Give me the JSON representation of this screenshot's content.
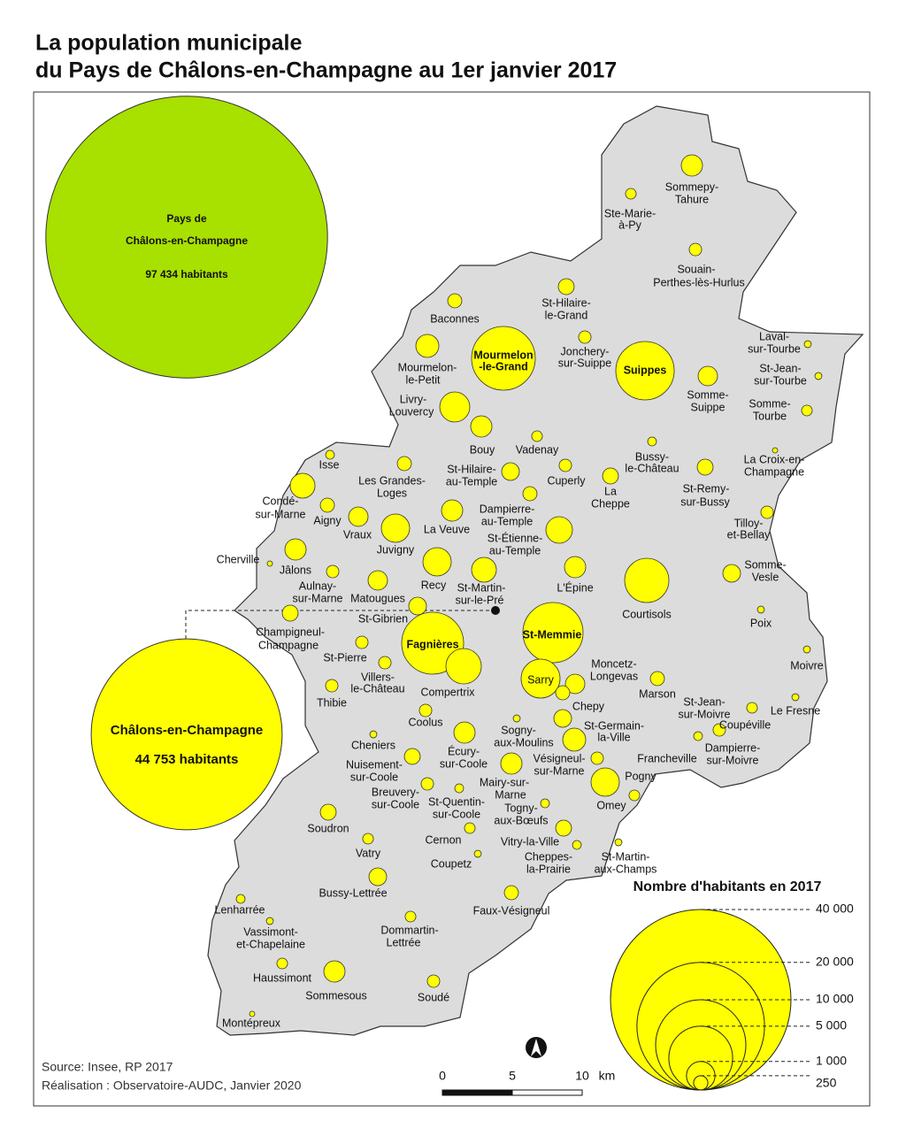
{
  "title": [
    "La population municipale",
    "du Pays de Châlons-en-Champagne au 1er janvier 2017"
  ],
  "pays": {
    "name": [
      "Pays de",
      "Châlons-en-Champagne"
    ],
    "population": 97434,
    "population_label": "97 434 habitants"
  },
  "chalons": {
    "name": "Châlons-en-Champagne",
    "population": 44753,
    "population_label": "44 753 habitants"
  },
  "communes": [
    {
      "name": [
        "Sommepy-",
        "Tahure"
      ],
      "population": 555
    },
    {
      "name": [
        "Ste-Marie-",
        "à-Py"
      ],
      "population": 140
    },
    {
      "name": [
        "Souain-",
        "Perthes-lès-Hurlus"
      ],
      "population": 190
    },
    {
      "name": [
        "St-Hilaire-",
        "le-Grand"
      ],
      "population": 310
    },
    {
      "name": [
        "Baconnes"
      ],
      "population": 245
    },
    {
      "name": [
        "Jonchery-",
        "sur-Suippe"
      ],
      "population": 190
    },
    {
      "name": [
        "Mourmelon-",
        "le-Petit"
      ],
      "population": 650
    },
    {
      "name": [
        "Mourmelon",
        "-le-Grand"
      ],
      "population": 4985
    },
    {
      "name": [
        "Suippes"
      ],
      "population": 4190
    },
    {
      "name": [
        "Laval-",
        "sur-Tourbe"
      ],
      "population": 60
    },
    {
      "name": [
        "St-Jean-",
        "sur-Tourbe"
      ],
      "population": 60
    },
    {
      "name": [
        "Somme-",
        "Suippe"
      ],
      "population": 465
    },
    {
      "name": [
        "Somme-",
        "Tourbe"
      ],
      "population": 140
    },
    {
      "name": [
        "Livry-",
        "Louvercy"
      ],
      "population": 1110
    },
    {
      "name": [
        "Bouy"
      ],
      "population": 555
    },
    {
      "name": [
        "Vadenay"
      ],
      "population": 140
    },
    {
      "name": [
        "Bussy-",
        "le-Château"
      ],
      "population": 95
    },
    {
      "name": [
        "La Croix-en-",
        "Champagne"
      ],
      "population": 35
    },
    {
      "name": [
        "Isse"
      ],
      "population": 95
    },
    {
      "name": [
        "Les Grandes-",
        "Loges"
      ],
      "population": 245
    },
    {
      "name": [
        "St-Hilaire-",
        "au-Temple"
      ],
      "population": 385
    },
    {
      "name": [
        "Cuperly"
      ],
      "population": 190
    },
    {
      "name": [
        "St-Remy-",
        "sur-Bussy"
      ],
      "population": 310
    },
    {
      "name": [
        "La",
        "Cheppe"
      ],
      "population": 310
    },
    {
      "name": [
        "Condé-",
        "sur-Marne"
      ],
      "population": 755
    },
    {
      "name": [
        "Dampierre-",
        "au-Temple"
      ],
      "population": 245
    },
    {
      "name": [
        "Aigny"
      ],
      "population": 245
    },
    {
      "name": [
        "Vraux"
      ],
      "population": 465
    },
    {
      "name": [
        "Juvigny"
      ],
      "population": 985
    },
    {
      "name": [
        "La Veuve"
      ],
      "population": 555
    },
    {
      "name": [
        "St-Étienne-",
        "au-Temple"
      ],
      "population": 865
    },
    {
      "name": [
        "Tilloy-",
        "et-Bellay"
      ],
      "population": 190
    },
    {
      "name": [
        "Cherville"
      ],
      "population": 35
    },
    {
      "name": [
        "Jâlons"
      ],
      "population": 555
    },
    {
      "name": [
        "Aulnay-",
        "sur-Marne"
      ],
      "population": 190
    },
    {
      "name": [
        "Recy"
      ],
      "population": 985
    },
    {
      "name": [
        "St-Martin-",
        "sur-le-Pré"
      ],
      "population": 755
    },
    {
      "name": [
        "L'Épine"
      ],
      "population": 555
    },
    {
      "name": [
        "Matougues"
      ],
      "population": 465
    },
    {
      "name": [
        "Courtisols"
      ],
      "population": 2400
    },
    {
      "name": [
        "Somme-",
        "Vesle"
      ],
      "population": 385
    },
    {
      "name": [
        "Poix"
      ],
      "population": 60
    },
    {
      "name": [
        "St-Gibrien"
      ],
      "population": 385
    },
    {
      "name": [
        "Champigneul-",
        "Champagne"
      ],
      "population": 310
    },
    {
      "name": [
        "Fagnières"
      ],
      "population": 4710
    },
    {
      "name": [
        "St-Memmie"
      ],
      "population": 4445
    },
    {
      "name": [
        "Compertrix"
      ],
      "population": 1540
    },
    {
      "name": [
        "Sarry"
      ],
      "population": 1860
    },
    {
      "name": [
        "St-Pierre"
      ],
      "population": 190
    },
    {
      "name": [
        "Villers-",
        "le-Château"
      ],
      "population": 190
    },
    {
      "name": [
        "Moncetz-",
        "Longevas"
      ],
      "population": 465
    },
    {
      "name": [
        "Marson"
      ],
      "population": 245
    },
    {
      "name": [
        "Moivre"
      ],
      "population": 60
    },
    {
      "name": [
        "Thibie"
      ],
      "population": 190
    },
    {
      "name": [
        "Chepy"
      ],
      "population": 245
    },
    {
      "name": [
        "Coolus"
      ],
      "population": 190
    },
    {
      "name": [
        "Le Fresne"
      ],
      "population": 60
    },
    {
      "name": [
        "St-Jean-",
        "sur-Moivre"
      ],
      "population": 140
    },
    {
      "name": [
        "Sogny-",
        "aux-Moulins"
      ],
      "population": 60
    },
    {
      "name": [
        "St-Germain-",
        "la-Ville"
      ],
      "population": 385
    },
    {
      "name": [
        "Coupéville"
      ],
      "population": 190
    },
    {
      "name": [
        "Écury-",
        "sur-Coole"
      ],
      "population": 555
    },
    {
      "name": [
        "Cheniers"
      ],
      "population": 60
    },
    {
      "name": [
        "Vésigneul-",
        "sur-Marne"
      ],
      "population": 650
    },
    {
      "name": [
        "Francheville"
      ],
      "population": 190
    },
    {
      "name": [
        "Dampierre-",
        "sur-Moivre"
      ],
      "population": 95
    },
    {
      "name": [
        "Nuisement-",
        "sur-Coole"
      ],
      "population": 310
    },
    {
      "name": [
        "Mairy-sur-",
        "Marne"
      ],
      "population": 555
    },
    {
      "name": [
        "Pogny"
      ],
      "population": 985
    },
    {
      "name": [
        "Breuvery-",
        "sur-Coole"
      ],
      "population": 190
    },
    {
      "name": [
        "St-Quentin-",
        "sur-Coole"
      ],
      "population": 95
    },
    {
      "name": [
        "Omey"
      ],
      "population": 140
    },
    {
      "name": [
        "Togny-",
        "aux-Bœufs"
      ],
      "population": 95
    },
    {
      "name": [
        "Soudron"
      ],
      "population": 310
    },
    {
      "name": [
        "Cernon"
      ],
      "population": 140
    },
    {
      "name": [
        "Vitry-la-Ville"
      ],
      "population": 310
    },
    {
      "name": [
        "Vatry"
      ],
      "population": 140
    },
    {
      "name": [
        "Coupetz"
      ],
      "population": 60
    },
    {
      "name": [
        "Cheppes-",
        "la-Prairie"
      ],
      "population": 95
    },
    {
      "name": [
        "St-Martin-",
        "aux-Champs"
      ],
      "population": 60
    },
    {
      "name": [
        "Bussy-Lettrée"
      ],
      "population": 385
    },
    {
      "name": [
        "Faux-Vésigneul"
      ],
      "population": 245
    },
    {
      "name": [
        "Lenharrée"
      ],
      "population": 95
    },
    {
      "name": [
        "Vassimont-",
        "et-Chapelaine"
      ],
      "population": 60
    },
    {
      "name": [
        "Dommartin-",
        "Lettrée"
      ],
      "population": 140
    },
    {
      "name": [
        "Haussimont"
      ],
      "population": 140
    },
    {
      "name": [
        "Sommesous"
      ],
      "population": 555
    },
    {
      "name": [
        "Soudé"
      ],
      "population": 190
    },
    {
      "name": [
        "Montépreux"
      ],
      "population": 35
    }
  ],
  "legend": {
    "title": "Nombre d'habitants en 2017",
    "max": 40000,
    "ticks": [
      {
        "value": 40000,
        "label": "40 000"
      },
      {
        "value": 20000,
        "label": "20 000"
      },
      {
        "value": 10000,
        "label": "10 000"
      },
      {
        "value": 5000,
        "label": "5 000"
      },
      {
        "value": 1000,
        "label": "1 000"
      },
      250
    ]
  },
  "scale": {
    "ticks": [
      0,
      5,
      10
    ],
    "unit": "km"
  },
  "source": [
    "Source: Insee, RP 2017",
    "Réalisation : Observatoire-AUDC, Janvier 2020"
  ]
}
